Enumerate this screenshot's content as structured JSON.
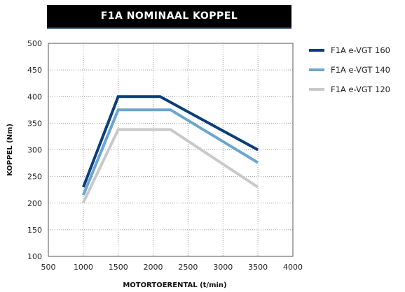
{
  "chart_data": {
    "type": "line",
    "title": "F1A NOMINAAL KOPPEL",
    "xlabel": "MOTORTOERENTAL (t/min)",
    "ylabel": "KOPPEL (Nm)",
    "xlim": [
      500,
      4000
    ],
    "ylim": [
      100,
      500
    ],
    "xticks": [
      500,
      1000,
      1500,
      2000,
      2500,
      3000,
      3500,
      4000
    ],
    "yticks": [
      100,
      150,
      200,
      250,
      300,
      350,
      400,
      450,
      500
    ],
    "grid": "dotted",
    "legend_position": "right",
    "series": [
      {
        "name": "F1A e-VGT 160",
        "color": "#0b3d7a",
        "points": [
          [
            1000,
            230
          ],
          [
            1500,
            400
          ],
          [
            2100,
            400
          ],
          [
            3500,
            300
          ]
        ]
      },
      {
        "name": "F1A e-VGT 140",
        "color": "#6aa6d0",
        "points": [
          [
            1000,
            215
          ],
          [
            1500,
            375
          ],
          [
            2250,
            375
          ],
          [
            3500,
            276
          ]
        ]
      },
      {
        "name": "F1A e-VGT 120",
        "color": "#c9c9c9",
        "points": [
          [
            1000,
            201
          ],
          [
            1500,
            338
          ],
          [
            2250,
            338
          ],
          [
            3500,
            230
          ]
        ]
      }
    ]
  }
}
